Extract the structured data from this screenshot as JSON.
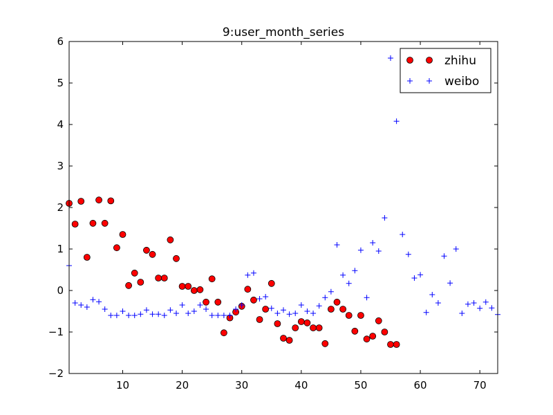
{
  "chart_data": {
    "type": "scatter",
    "title": "9:user_month_series",
    "xlabel": "",
    "ylabel": "",
    "xlim": [
      1,
      73
    ],
    "ylim": [
      -2,
      6
    ],
    "xticks": [
      10,
      20,
      30,
      40,
      50,
      60,
      70
    ],
    "yticks": [
      -2,
      -1,
      0,
      1,
      2,
      3,
      4,
      5,
      6
    ],
    "ytick_labels": [
      "−2",
      "−1",
      "0",
      "1",
      "2",
      "3",
      "4",
      "5",
      "6"
    ],
    "grid": false,
    "legend_position": "top-right",
    "series": [
      {
        "name": "zhihu",
        "marker": "circle",
        "color": "#ff0000",
        "x": [
          1,
          2,
          3,
          4,
          5,
          6,
          7,
          8,
          9,
          10,
          11,
          12,
          13,
          14,
          15,
          16,
          17,
          18,
          19,
          20,
          21,
          22,
          23,
          24,
          25,
          26,
          27,
          28,
          29,
          30,
          31,
          32,
          33,
          34,
          35,
          36,
          37,
          38,
          39,
          40,
          41,
          42,
          43,
          44,
          45,
          46,
          47,
          48,
          49,
          50,
          51,
          52,
          53,
          54,
          55,
          56
        ],
        "y": [
          2.1,
          1.6,
          2.15,
          0.8,
          1.62,
          2.18,
          1.62,
          2.16,
          1.03,
          1.35,
          0.12,
          0.42,
          0.2,
          0.97,
          0.87,
          0.3,
          0.3,
          1.22,
          0.77,
          0.1,
          0.1,
          0.0,
          0.02,
          -0.28,
          0.28,
          -0.28,
          -1.02,
          -0.66,
          -0.52,
          -0.38,
          0.03,
          -0.23,
          -0.7,
          -0.45,
          0.17,
          -0.8,
          -1.15,
          -1.2,
          -0.9,
          -0.75,
          -0.78,
          -0.9,
          -0.9,
          -1.28,
          -0.45,
          -0.28,
          -0.45,
          -0.6,
          -0.98,
          -0.6,
          -1.17,
          -1.1,
          -0.73,
          -1.0,
          -1.3,
          -1.3
        ]
      },
      {
        "name": "weibo",
        "marker": "plus",
        "color": "#0000ff",
        "x": [
          1,
          2,
          3,
          4,
          5,
          6,
          7,
          8,
          9,
          10,
          11,
          12,
          13,
          14,
          15,
          16,
          17,
          18,
          19,
          20,
          21,
          22,
          23,
          24,
          25,
          26,
          27,
          28,
          29,
          30,
          31,
          32,
          33,
          34,
          35,
          36,
          37,
          38,
          39,
          40,
          41,
          42,
          43,
          44,
          45,
          46,
          47,
          48,
          49,
          50,
          51,
          52,
          53,
          54,
          55,
          56,
          57,
          58,
          59,
          60,
          61,
          62,
          63,
          64,
          65,
          66,
          67,
          68,
          69,
          70,
          71,
          72,
          73
        ],
        "y": [
          0.6,
          -0.3,
          -0.35,
          -0.4,
          -0.22,
          -0.27,
          -0.45,
          -0.6,
          -0.6,
          -0.5,
          -0.6,
          -0.6,
          -0.57,
          -0.47,
          -0.57,
          -0.57,
          -0.6,
          -0.47,
          -0.55,
          -0.35,
          -0.55,
          -0.5,
          -0.35,
          -0.45,
          -0.6,
          -0.6,
          -0.6,
          -0.6,
          -0.45,
          -0.35,
          0.37,
          0.42,
          -0.2,
          -0.15,
          -0.43,
          -0.55,
          -0.47,
          -0.57,
          -0.55,
          -0.35,
          -0.5,
          -0.55,
          -0.37,
          -0.17,
          -0.03,
          1.1,
          0.37,
          0.17,
          0.48,
          0.97,
          -0.17,
          1.15,
          0.95,
          1.75,
          5.6,
          4.08,
          1.35,
          0.87,
          0.3,
          0.38,
          -0.53,
          -0.1,
          -0.3,
          0.83,
          0.18,
          1.0,
          -0.55,
          -0.33,
          -0.3,
          -0.43,
          -0.28,
          -0.42,
          -0.58
        ]
      }
    ]
  }
}
